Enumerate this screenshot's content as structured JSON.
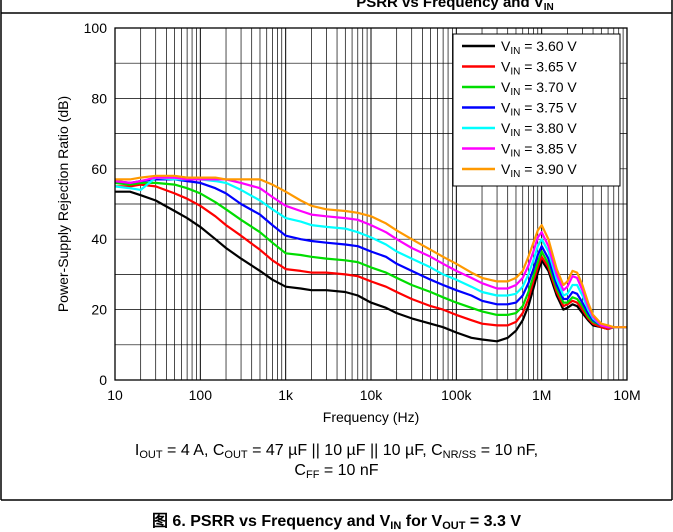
{
  "header": {
    "title_main": "PSRR vs Frequency and V",
    "title_sub": "IN"
  },
  "conditions": {
    "line1": [
      {
        "t": "I"
      },
      {
        "s": "OUT"
      },
      {
        "t": " = 4 A, C"
      },
      {
        "s": "OUT"
      },
      {
        "t": " = 47 µF || 10 µF || 10 µF, C"
      },
      {
        "s": "NR/SS"
      },
      {
        "t": " = 10 nF,"
      }
    ],
    "line2": [
      {
        "t": "C"
      },
      {
        "s": "FF"
      },
      {
        "t": " = 10 nF"
      }
    ]
  },
  "caption": {
    "parts": [
      {
        "t": "图 6. PSRR vs Frequency and V"
      },
      {
        "s": "IN"
      },
      {
        "t": " for V"
      },
      {
        "s": "OUT"
      },
      {
        "t": " = 3.3 V"
      }
    ]
  },
  "chart_data": {
    "type": "line",
    "xlabel": "Frequency (Hz)",
    "ylabel": "Power-Supply Rejection Ratio (dB)",
    "xscale": "log",
    "xlim": [
      10,
      10000000
    ],
    "ylim": [
      0,
      100
    ],
    "xticks": [
      10,
      100,
      1000,
      10000,
      100000,
      1000000,
      10000000
    ],
    "xtick_labels": [
      "10",
      "100",
      "1k",
      "10k",
      "100k",
      "1M",
      "10M"
    ],
    "yticks": [
      0,
      20,
      40,
      60,
      80,
      100
    ],
    "ytick_labels": [
      "0",
      "20",
      "40",
      "60",
      "80",
      "100"
    ],
    "grid": true,
    "legend_position": "top-right",
    "x": [
      10,
      15,
      20,
      30,
      50,
      70,
      100,
      150,
      200,
      300,
      500,
      700,
      1000,
      1500,
      2000,
      3000,
      5000,
      7000,
      10000,
      15000,
      20000,
      30000,
      50000,
      70000,
      100000,
      150000,
      200000,
      300000,
      400000,
      500000,
      600000,
      700000,
      800000,
      900000,
      1000000,
      1200000,
      1500000,
      1800000,
      2000000,
      2300000,
      2600000,
      3000000,
      3500000,
      4000000,
      5000000,
      6000000,
      7000000,
      10000000
    ],
    "series": [
      {
        "name": "V<sub>IN</sub> = 3.60 V",
        "legend_main": "V",
        "legend_sub": "IN",
        "legend_value": " = 3.60 V",
        "color": "#000000",
        "values": [
          53.5,
          53.5,
          52.5,
          51,
          48,
          46,
          43.5,
          40,
          37.5,
          34.5,
          31,
          28.5,
          26.5,
          26,
          25.5,
          25.5,
          25,
          24,
          22,
          20.5,
          19,
          17.5,
          16,
          15,
          13.5,
          12,
          11.5,
          11,
          12,
          14,
          17,
          21,
          26,
          30.5,
          34,
          31,
          24,
          20,
          20.5,
          21.5,
          21,
          19,
          17,
          15.5,
          15,
          14.5,
          15,
          15
        ]
      },
      {
        "name": "V<sub>IN</sub> = 3.65 V",
        "legend_main": "V",
        "legend_sub": "IN",
        "legend_value": " = 3.65 V",
        "color": "#ff0000",
        "values": [
          55,
          55,
          55.5,
          55,
          53,
          51.5,
          49.5,
          46.5,
          44,
          41,
          37,
          34,
          31.5,
          31,
          30.5,
          30.5,
          30,
          29.5,
          28,
          26.5,
          25,
          23,
          21,
          20,
          18.5,
          17,
          16,
          15.5,
          15.5,
          16.5,
          19,
          23,
          28,
          32,
          35,
          32,
          25,
          21,
          21.5,
          22.5,
          22,
          20,
          17.5,
          16,
          15,
          14.5,
          15,
          15
        ]
      },
      {
        "name": "V<sub>IN</sub> = 3.70 V",
        "legend_main": "V",
        "legend_sub": "IN",
        "legend_value": " = 3.70 V",
        "color": "#00dd00",
        "values": [
          56,
          55.5,
          56,
          56,
          55.5,
          54.5,
          53,
          50.5,
          48.5,
          45.5,
          42,
          39,
          36,
          35.5,
          35,
          34.5,
          34,
          33.5,
          32,
          30.5,
          29,
          27,
          25,
          23.5,
          22,
          20.5,
          19.5,
          18.5,
          18.5,
          19,
          21,
          25,
          29.5,
          33.5,
          36.5,
          33,
          26,
          22,
          22,
          23.5,
          23,
          21,
          18,
          16.5,
          15.5,
          15,
          15,
          15
        ]
      },
      {
        "name": "V<sub>IN</sub> = 3.75 V",
        "legend_main": "V",
        "legend_sub": "IN",
        "legend_value": " = 3.75 V",
        "color": "#0000ff",
        "values": [
          56.5,
          56,
          56.5,
          57,
          57,
          56.5,
          56,
          54.5,
          53,
          50,
          47,
          44,
          41,
          40,
          39.5,
          39,
          38.5,
          38,
          36.5,
          35,
          33,
          31,
          28.5,
          27,
          25.5,
          24,
          22.5,
          21.5,
          21.5,
          22,
          24,
          27.5,
          31.5,
          35.5,
          38,
          34.5,
          27,
          23,
          23,
          25,
          24.5,
          22,
          19,
          17,
          15.5,
          15,
          15,
          15
        ]
      },
      {
        "name": "V<sub>IN</sub> = 3.80 V",
        "legend_main": "V",
        "legend_sub": "IN",
        "legend_value": " = 3.80 V",
        "color": "#00ffff",
        "values": [
          55,
          54.5,
          54,
          57.5,
          57,
          57,
          57,
          56.5,
          56,
          54,
          51,
          48.5,
          46,
          45,
          44,
          43.5,
          43,
          42,
          40.5,
          38.5,
          36.5,
          34.5,
          32,
          30,
          28.5,
          26.5,
          25,
          24,
          24,
          24.5,
          26.5,
          30,
          34,
          38,
          40,
          36.5,
          28.5,
          24,
          24.5,
          27,
          27,
          24,
          20,
          17.5,
          15.5,
          15,
          15,
          15
        ]
      },
      {
        "name": "V<sub>IN</sub> = 3.85 V",
        "legend_main": "V",
        "legend_sub": "IN",
        "legend_value": " = 3.85 V",
        "color": "#ff00ff",
        "values": [
          56.5,
          56,
          56.5,
          57.5,
          57.5,
          57,
          57,
          57,
          57,
          56,
          54.5,
          52,
          49.5,
          48,
          47,
          46.5,
          46,
          45.5,
          44,
          42,
          40,
          37.5,
          35,
          33,
          31,
          29,
          27.5,
          26,
          26,
          27,
          29,
          32.5,
          36.5,
          40.5,
          42,
          38,
          30,
          25.5,
          26.5,
          29.5,
          29,
          25.5,
          21,
          18,
          15.5,
          15,
          15,
          15
        ]
      },
      {
        "name": "V<sub>IN</sub> = 3.90 V",
        "legend_main": "V",
        "legend_sub": "IN",
        "legend_value": " = 3.90 V",
        "color": "#ff9900",
        "values": [
          57,
          57,
          57.5,
          58,
          58,
          57.5,
          57.5,
          57.5,
          57,
          57,
          57,
          55.5,
          53.5,
          51,
          49.5,
          48.5,
          48,
          47.5,
          46.5,
          44.5,
          42.5,
          40,
          37,
          35,
          33,
          30.5,
          29,
          28,
          28,
          29,
          31,
          35,
          39,
          42.5,
          44,
          40,
          31.5,
          27,
          28,
          31,
          30.5,
          27,
          22,
          18.5,
          16,
          15.5,
          15,
          15
        ]
      }
    ]
  }
}
